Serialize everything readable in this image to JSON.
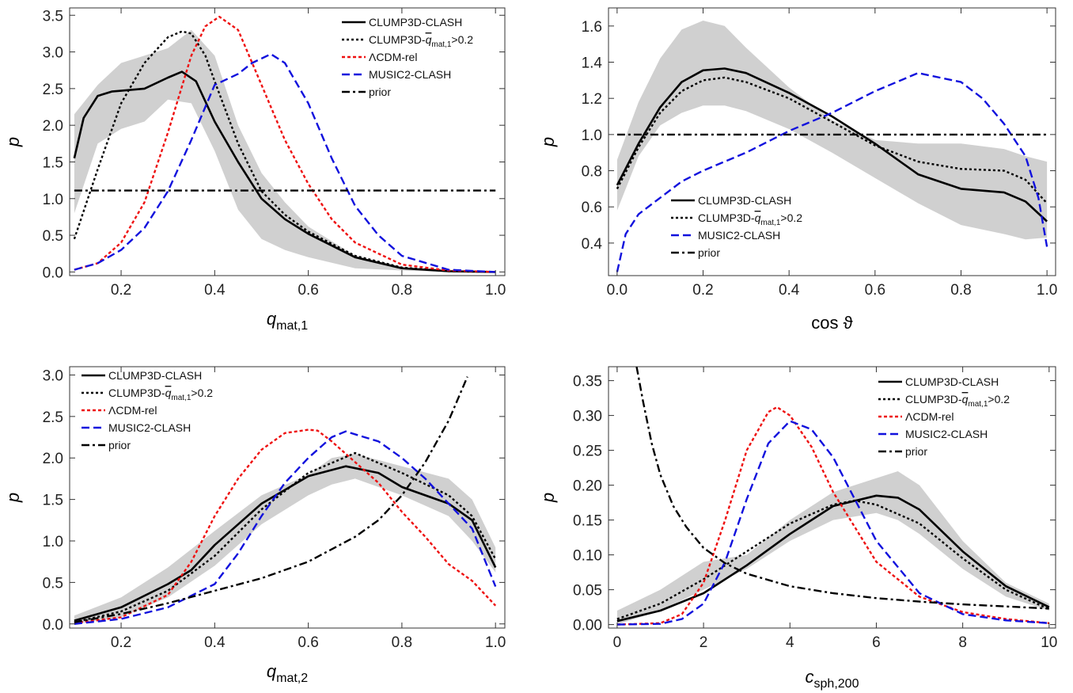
{
  "chart_data": [
    {
      "type": "line",
      "xlabel": "q",
      "xlabel_sub": "mat,1",
      "ylabel": "p",
      "xlim": [
        0.09,
        1.02
      ],
      "ylim": [
        -0.05,
        3.6
      ],
      "xticks": [
        0.2,
        0.4,
        0.6,
        0.8,
        1.0
      ],
      "xtick_labels": [
        "0.2",
        "0.4",
        "0.6",
        "0.8",
        "1.0"
      ],
      "yticks": [
        0.0,
        0.5,
        1.0,
        1.5,
        2.0,
        2.5,
        3.0,
        3.5
      ],
      "ytick_labels": [
        "0.0",
        "0.5",
        "1.0",
        "1.5",
        "2.0",
        "2.5",
        "3.0",
        "3.5"
      ],
      "legend_position": "top-right",
      "band": {
        "x": [
          0.1,
          0.15,
          0.2,
          0.25,
          0.3,
          0.35,
          0.4,
          0.45,
          0.5,
          0.55,
          0.6,
          0.7,
          0.8,
          0.9,
          1.0
        ],
        "lower": [
          0.8,
          1.75,
          1.95,
          2.05,
          2.35,
          2.3,
          1.65,
          0.85,
          0.45,
          0.3,
          0.2,
          0.05,
          0.02,
          0.0,
          0.0
        ],
        "upper": [
          2.15,
          2.55,
          2.85,
          2.95,
          3.05,
          3.3,
          2.95,
          2.0,
          1.35,
          0.95,
          0.62,
          0.22,
          0.06,
          0.01,
          0.0
        ]
      },
      "series": [
        {
          "name": "CLUMP3D-CLASH",
          "name_prefix": "CLUMP3D-CLASH",
          "style": "solid",
          "color": "#000000",
          "x": [
            0.1,
            0.12,
            0.15,
            0.18,
            0.2,
            0.25,
            0.3,
            0.33,
            0.36,
            0.4,
            0.45,
            0.5,
            0.55,
            0.6,
            0.7,
            0.8,
            0.9,
            1.0
          ],
          "values": [
            1.55,
            2.1,
            2.4,
            2.46,
            2.47,
            2.5,
            2.65,
            2.73,
            2.6,
            2.05,
            1.5,
            1.0,
            0.72,
            0.52,
            0.2,
            0.05,
            0.01,
            0.0
          ]
        },
        {
          "name": "CLUMP3D-q̄mat,1>0.2",
          "name_prefix": "CLUMP3D-",
          "name_qbar": "q",
          "name_sub": "mat,1",
          "name_suffix": ">0.2",
          "style": "dotted",
          "color": "#000000",
          "x": [
            0.1,
            0.15,
            0.2,
            0.25,
            0.3,
            0.33,
            0.35,
            0.38,
            0.4,
            0.45,
            0.5,
            0.55,
            0.6,
            0.7,
            0.8,
            0.9,
            1.0
          ],
          "values": [
            0.45,
            1.4,
            2.3,
            2.85,
            3.2,
            3.28,
            3.25,
            2.95,
            2.6,
            1.75,
            1.1,
            0.78,
            0.55,
            0.22,
            0.06,
            0.01,
            0.0
          ]
        },
        {
          "name": "ΛCDM-rel",
          "name_prefix": "ΛCDM-rel",
          "style": "short-dash",
          "color": "#ee1111",
          "x": [
            0.1,
            0.15,
            0.2,
            0.25,
            0.3,
            0.35,
            0.38,
            0.41,
            0.45,
            0.5,
            0.55,
            0.6,
            0.65,
            0.7,
            0.8,
            0.9,
            1.0
          ],
          "values": [
            0.03,
            0.12,
            0.4,
            0.95,
            1.9,
            2.95,
            3.35,
            3.48,
            3.3,
            2.55,
            1.8,
            1.2,
            0.72,
            0.4,
            0.1,
            0.02,
            0.0
          ]
        },
        {
          "name": "MUSIC2-CLASH",
          "name_prefix": "MUSIC2-CLASH",
          "style": "long-dash",
          "color": "#1111dd",
          "x": [
            0.1,
            0.15,
            0.2,
            0.25,
            0.3,
            0.35,
            0.4,
            0.45,
            0.48,
            0.52,
            0.55,
            0.6,
            0.65,
            0.7,
            0.75,
            0.8,
            0.9,
            1.0
          ],
          "values": [
            0.03,
            0.12,
            0.3,
            0.6,
            1.1,
            1.8,
            2.55,
            2.7,
            2.85,
            2.97,
            2.85,
            2.3,
            1.55,
            0.9,
            0.5,
            0.22,
            0.03,
            0.0
          ]
        },
        {
          "name": "prior",
          "name_prefix": "prior",
          "style": "dot-dash",
          "color": "#000000",
          "x": [
            0.1,
            1.0
          ],
          "values": [
            1.11,
            1.11
          ]
        }
      ]
    },
    {
      "type": "line",
      "xlabel": "cos ϑ",
      "xlabel_sub": "",
      "ylabel": "p",
      "xlim": [
        -0.02,
        1.02
      ],
      "ylim": [
        0.22,
        1.7
      ],
      "xticks": [
        0.0,
        0.2,
        0.4,
        0.6,
        0.8,
        1.0
      ],
      "xtick_labels": [
        "0.0",
        "0.2",
        "0.4",
        "0.6",
        "0.8",
        "1.0"
      ],
      "yticks": [
        0.4,
        0.6,
        0.8,
        1.0,
        1.2,
        1.4,
        1.6
      ],
      "ytick_labels": [
        "0.4",
        "0.6",
        "0.8",
        "1.0",
        "1.2",
        "1.4",
        "1.6"
      ],
      "legend_position": "bottom-left",
      "band": {
        "x": [
          0.0,
          0.05,
          0.1,
          0.15,
          0.2,
          0.25,
          0.3,
          0.4,
          0.5,
          0.6,
          0.7,
          0.8,
          0.9,
          0.95,
          1.0
        ],
        "lower": [
          0.58,
          0.88,
          1.05,
          1.12,
          1.16,
          1.16,
          1.13,
          1.03,
          0.9,
          0.76,
          0.62,
          0.5,
          0.45,
          0.42,
          0.43
        ],
        "upper": [
          0.86,
          1.18,
          1.42,
          1.58,
          1.63,
          1.6,
          1.48,
          1.26,
          1.08,
          0.97,
          0.95,
          0.95,
          0.92,
          0.88,
          0.85
        ]
      },
      "series": [
        {
          "name": "CLUMP3D-CLASH",
          "name_prefix": "CLUMP3D-CLASH",
          "style": "solid",
          "color": "#000000",
          "x": [
            0.0,
            0.05,
            0.1,
            0.15,
            0.2,
            0.25,
            0.3,
            0.4,
            0.5,
            0.6,
            0.7,
            0.8,
            0.9,
            0.95,
            1.0
          ],
          "values": [
            0.72,
            0.95,
            1.15,
            1.29,
            1.355,
            1.365,
            1.34,
            1.23,
            1.1,
            0.95,
            0.78,
            0.7,
            0.68,
            0.63,
            0.52
          ]
        },
        {
          "name": "CLUMP3D-q̄mat,1>0.2",
          "name_prefix": "CLUMP3D-",
          "name_qbar": "q",
          "name_sub": "mat,1",
          "name_suffix": ">0.2",
          "style": "dotted",
          "color": "#000000",
          "x": [
            0.0,
            0.05,
            0.1,
            0.15,
            0.2,
            0.25,
            0.3,
            0.4,
            0.5,
            0.6,
            0.7,
            0.8,
            0.9,
            0.95,
            1.0
          ],
          "values": [
            0.7,
            0.93,
            1.12,
            1.24,
            1.3,
            1.315,
            1.29,
            1.2,
            1.07,
            0.94,
            0.85,
            0.81,
            0.8,
            0.75,
            0.62
          ]
        },
        {
          "name": "MUSIC2-CLASH",
          "name_prefix": "MUSIC2-CLASH",
          "style": "long-dash",
          "color": "#1111dd",
          "x": [
            0.0,
            0.02,
            0.05,
            0.1,
            0.15,
            0.2,
            0.3,
            0.4,
            0.5,
            0.6,
            0.7,
            0.8,
            0.85,
            0.9,
            0.95,
            0.98,
            1.0
          ],
          "values": [
            0.24,
            0.45,
            0.56,
            0.65,
            0.74,
            0.8,
            0.9,
            1.02,
            1.12,
            1.24,
            1.34,
            1.29,
            1.2,
            1.06,
            0.88,
            0.65,
            0.38
          ]
        },
        {
          "name": "prior",
          "name_prefix": "prior",
          "style": "dot-dash",
          "color": "#000000",
          "x": [
            0.0,
            1.0
          ],
          "values": [
            1.0,
            1.0
          ]
        }
      ]
    },
    {
      "type": "line",
      "xlabel": "q",
      "xlabel_sub": "mat,2",
      "ylabel": "p",
      "xlim": [
        0.09,
        1.02
      ],
      "ylim": [
        -0.05,
        3.1
      ],
      "xticks": [
        0.2,
        0.4,
        0.6,
        0.8,
        1.0
      ],
      "xtick_labels": [
        "0.2",
        "0.4",
        "0.6",
        "0.8",
        "1.0"
      ],
      "yticks": [
        0.0,
        0.5,
        1.0,
        1.5,
        2.0,
        2.5,
        3.0
      ],
      "ytick_labels": [
        "0.0",
        "0.5",
        "1.0",
        "1.5",
        "2.0",
        "2.5",
        "3.0"
      ],
      "legend_position": "top-left",
      "band": {
        "x": [
          0.1,
          0.2,
          0.3,
          0.4,
          0.5,
          0.6,
          0.65,
          0.7,
          0.8,
          0.9,
          0.95,
          1.0
        ],
        "lower": [
          0.0,
          0.08,
          0.32,
          0.7,
          1.2,
          1.55,
          1.68,
          1.75,
          1.55,
          1.3,
          1.0,
          0.62
        ],
        "upper": [
          0.1,
          0.32,
          0.68,
          1.12,
          1.55,
          1.8,
          2.0,
          2.05,
          1.9,
          1.75,
          1.5,
          0.92
        ]
      },
      "series": [
        {
          "name": "CLUMP3D-CLASH",
          "name_prefix": "CLUMP3D-CLASH",
          "style": "solid",
          "color": "#000000",
          "x": [
            0.1,
            0.2,
            0.3,
            0.35,
            0.4,
            0.5,
            0.6,
            0.68,
            0.75,
            0.8,
            0.9,
            0.95,
            1.0
          ],
          "values": [
            0.04,
            0.2,
            0.48,
            0.65,
            0.95,
            1.45,
            1.78,
            1.9,
            1.82,
            1.65,
            1.45,
            1.25,
            0.68
          ]
        },
        {
          "name": "CLUMP3D-q̄mat,1>0.2",
          "name_prefix": "CLUMP3D-",
          "name_qbar": "q",
          "name_sub": "mat,1",
          "name_suffix": ">0.2",
          "style": "dotted",
          "color": "#000000",
          "x": [
            0.1,
            0.2,
            0.3,
            0.4,
            0.5,
            0.6,
            0.7,
            0.8,
            0.9,
            0.95,
            1.0
          ],
          "values": [
            0.02,
            0.15,
            0.4,
            0.82,
            1.38,
            1.82,
            2.06,
            1.82,
            1.55,
            1.3,
            0.78
          ]
        },
        {
          "name": "ΛCDM-rel",
          "name_prefix": "ΛCDM-rel",
          "style": "short-dash",
          "color": "#ee1111",
          "x": [
            0.1,
            0.2,
            0.3,
            0.35,
            0.4,
            0.45,
            0.5,
            0.55,
            0.6,
            0.62,
            0.65,
            0.7,
            0.75,
            0.8,
            0.85,
            0.9,
            0.95,
            1.0
          ],
          "values": [
            0.01,
            0.08,
            0.35,
            0.75,
            1.3,
            1.75,
            2.1,
            2.3,
            2.34,
            2.33,
            2.2,
            1.95,
            1.7,
            1.35,
            1.05,
            0.72,
            0.52,
            0.22
          ]
        },
        {
          "name": "MUSIC2-CLASH",
          "name_prefix": "MUSIC2-CLASH",
          "style": "long-dash",
          "color": "#1111dd",
          "x": [
            0.1,
            0.2,
            0.3,
            0.4,
            0.45,
            0.5,
            0.55,
            0.6,
            0.65,
            0.68,
            0.72,
            0.75,
            0.8,
            0.85,
            0.9,
            0.95,
            1.0
          ],
          "values": [
            0.0,
            0.06,
            0.2,
            0.48,
            0.85,
            1.3,
            1.7,
            2.0,
            2.25,
            2.32,
            2.25,
            2.2,
            2.0,
            1.75,
            1.45,
            1.15,
            0.45
          ]
        },
        {
          "name": "prior",
          "name_prefix": "prior",
          "style": "dot-dash",
          "color": "#000000",
          "x": [
            0.1,
            0.2,
            0.3,
            0.4,
            0.5,
            0.6,
            0.7,
            0.75,
            0.8,
            0.85,
            0.9,
            0.94
          ],
          "values": [
            0.02,
            0.12,
            0.25,
            0.4,
            0.55,
            0.75,
            1.05,
            1.25,
            1.55,
            1.95,
            2.45,
            2.98
          ]
        }
      ]
    },
    {
      "type": "line",
      "xlabel": "c",
      "xlabel_sub": "sph,200",
      "ylabel": "p",
      "xlim": [
        -0.2,
        10.15
      ],
      "ylim": [
        -0.005,
        0.37
      ],
      "xticks": [
        0,
        2,
        4,
        6,
        8,
        10
      ],
      "xtick_labels": [
        "0",
        "2",
        "4",
        "6",
        "8",
        "10"
      ],
      "yticks": [
        0.0,
        0.05,
        0.1,
        0.15,
        0.2,
        0.25,
        0.3,
        0.35
      ],
      "ytick_labels": [
        "0.00",
        "0.05",
        "0.10",
        "0.15",
        "0.20",
        "0.25",
        "0.30",
        "0.35"
      ],
      "legend_position": "top-right",
      "band": {
        "x": [
          0.0,
          1.0,
          2.0,
          3.0,
          4.0,
          5.0,
          6.0,
          6.5,
          7.0,
          8.0,
          9.0,
          10.0
        ],
        "lower": [
          0.0,
          0.02,
          0.05,
          0.08,
          0.12,
          0.15,
          0.16,
          0.15,
          0.13,
          0.08,
          0.04,
          0.02
        ],
        "upper": [
          0.02,
          0.05,
          0.09,
          0.1,
          0.15,
          0.19,
          0.21,
          0.22,
          0.2,
          0.12,
          0.06,
          0.03
        ]
      },
      "series": [
        {
          "name": "CLUMP3D-CLASH",
          "name_prefix": "CLUMP3D-CLASH",
          "style": "solid",
          "color": "#000000",
          "x": [
            0.0,
            1.0,
            2.0,
            3.0,
            4.0,
            5.0,
            6.0,
            6.5,
            7.0,
            8.0,
            9.0,
            10.0
          ],
          "values": [
            0.005,
            0.02,
            0.045,
            0.085,
            0.13,
            0.17,
            0.185,
            0.182,
            0.165,
            0.105,
            0.055,
            0.025
          ]
        },
        {
          "name": "CLUMP3D-q̄mat,1>0.2",
          "name_prefix": "CLUMP3D-",
          "name_qbar": "q",
          "name_sub": "mat,1",
          "name_suffix": ">0.2",
          "style": "dotted",
          "color": "#000000",
          "x": [
            0.0,
            1.0,
            2.0,
            3.0,
            4.0,
            5.0,
            5.5,
            6.0,
            7.0,
            8.0,
            9.0,
            10.0
          ],
          "values": [
            0.008,
            0.03,
            0.065,
            0.105,
            0.145,
            0.172,
            0.178,
            0.172,
            0.145,
            0.095,
            0.05,
            0.022
          ]
        },
        {
          "name": "ΛCDM-rel",
          "name_prefix": "ΛCDM-rel",
          "style": "short-dash",
          "color": "#ee1111",
          "x": [
            0.0,
            1.0,
            1.5,
            2.0,
            2.5,
            3.0,
            3.5,
            3.7,
            4.0,
            4.5,
            5.0,
            6.0,
            7.0,
            8.0,
            9.0,
            10.0
          ],
          "values": [
            0.0,
            0.002,
            0.015,
            0.06,
            0.15,
            0.25,
            0.305,
            0.312,
            0.3,
            0.255,
            0.19,
            0.09,
            0.04,
            0.018,
            0.008,
            0.002
          ]
        },
        {
          "name": "MUSIC2-CLASH",
          "name_prefix": "MUSIC2-CLASH",
          "style": "long-dash",
          "color": "#1111dd",
          "x": [
            0.0,
            1.0,
            1.5,
            2.0,
            2.5,
            3.0,
            3.5,
            4.0,
            4.5,
            5.0,
            5.5,
            6.0,
            7.0,
            8.0,
            9.0,
            10.0
          ],
          "values": [
            0.0,
            0.001,
            0.008,
            0.03,
            0.09,
            0.18,
            0.26,
            0.292,
            0.28,
            0.24,
            0.18,
            0.12,
            0.045,
            0.015,
            0.006,
            0.002
          ]
        },
        {
          "name": "prior",
          "name_prefix": "prior",
          "style": "dot-dash",
          "color": "#000000",
          "x": [
            0.45,
            0.6,
            0.8,
            1.0,
            1.3,
            1.6,
            2.0,
            2.5,
            3.0,
            4.0,
            5.0,
            6.0,
            7.0,
            8.0,
            9.0,
            10.0
          ],
          "values": [
            0.37,
            0.32,
            0.26,
            0.215,
            0.17,
            0.14,
            0.11,
            0.088,
            0.073,
            0.055,
            0.045,
            0.038,
            0.033,
            0.029,
            0.026,
            0.023
          ]
        }
      ]
    }
  ]
}
